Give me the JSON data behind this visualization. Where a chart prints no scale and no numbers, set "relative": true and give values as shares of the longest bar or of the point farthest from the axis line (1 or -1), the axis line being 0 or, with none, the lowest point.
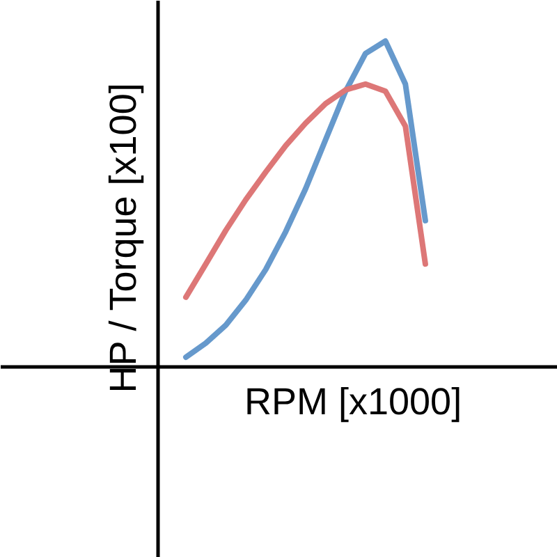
{
  "chart_data": {
    "type": "line",
    "relative": true,
    "xlabel": "RPM [x1000]",
    "ylabel": "HP / Torque [x100]",
    "categories": [
      null,
      null,
      null,
      null,
      null,
      null,
      null,
      null,
      null,
      null,
      null,
      null,
      null
    ],
    "series": [
      {
        "color": "#6699cc",
        "values": [
          0.03,
          0.073,
          0.128,
          0.205,
          0.299,
          0.415,
          0.547,
          0.697,
          0.846,
          0.962,
          1,
          0.868,
          0.449
        ]
      },
      {
        "color": "#dd7777",
        "values": [
          0.214,
          0.316,
          0.419,
          0.513,
          0.598,
          0.679,
          0.748,
          0.808,
          0.85,
          0.868,
          0.846,
          0.739,
          0.316
        ]
      }
    ]
  }
}
